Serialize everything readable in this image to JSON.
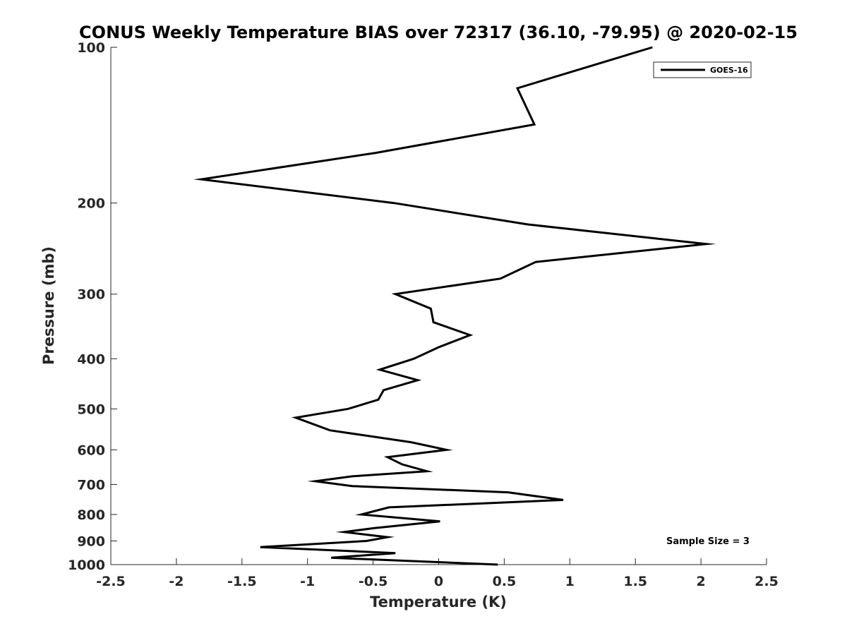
{
  "chart_data": {
    "type": "line",
    "title": "CONUS Weekly Temperature BIAS over 72317 (36.10, -79.95) @ 2020-02-15",
    "xlabel": "Temperature (K)",
    "ylabel": "Pressure (mb)",
    "xlim": [
      -2.5,
      2.5
    ],
    "ylim": [
      1000,
      100
    ],
    "y_scale": "log",
    "y_direction": "reversed",
    "x_ticks": [
      -2.5,
      -2,
      -1.5,
      -1,
      -0.5,
      0,
      0.5,
      1,
      1.5,
      2,
      2.5
    ],
    "x_tick_labels": [
      "-2.5",
      "-2",
      "-1.5",
      "-1",
      "-0.5",
      "0",
      "0.5",
      "1",
      "1.5",
      "2",
      "2.5"
    ],
    "y_ticks": [
      100,
      200,
      300,
      400,
      500,
      600,
      700,
      800,
      900,
      1000
    ],
    "y_tick_labels": [
      "100",
      "200",
      "300",
      "400",
      "500",
      "600",
      "700",
      "800",
      "900",
      "1000"
    ],
    "grid": false,
    "legend_position": "top-right",
    "annotation": "Sample Size = 3",
    "line_color": "#000000",
    "series": [
      {
        "name": "GOES-16",
        "points": [
          {
            "x": 1.63,
            "y": 100
          },
          {
            "x": 0.6,
            "y": 120
          },
          {
            "x": 0.73,
            "y": 141
          },
          {
            "x": -0.48,
            "y": 160
          },
          {
            "x": -1.81,
            "y": 180
          },
          {
            "x": -0.34,
            "y": 200
          },
          {
            "x": 0.68,
            "y": 220
          },
          {
            "x": 2.04,
            "y": 240
          },
          {
            "x": 0.74,
            "y": 260
          },
          {
            "x": 0.47,
            "y": 280
          },
          {
            "x": -0.33,
            "y": 300
          },
          {
            "x": -0.06,
            "y": 320
          },
          {
            "x": -0.04,
            "y": 340
          },
          {
            "x": 0.24,
            "y": 360
          },
          {
            "x": 0.0,
            "y": 380
          },
          {
            "x": -0.19,
            "y": 400
          },
          {
            "x": -0.45,
            "y": 420
          },
          {
            "x": -0.16,
            "y": 440
          },
          {
            "x": -0.42,
            "y": 460
          },
          {
            "x": -0.46,
            "y": 480
          },
          {
            "x": -0.69,
            "y": 500
          },
          {
            "x": -1.09,
            "y": 520
          },
          {
            "x": -0.83,
            "y": 550
          },
          {
            "x": -0.21,
            "y": 580
          },
          {
            "x": 0.06,
            "y": 600
          },
          {
            "x": -0.39,
            "y": 620
          },
          {
            "x": -0.28,
            "y": 640
          },
          {
            "x": -0.09,
            "y": 660
          },
          {
            "x": -0.66,
            "y": 675
          },
          {
            "x": -0.94,
            "y": 690
          },
          {
            "x": -0.66,
            "y": 705
          },
          {
            "x": 0.53,
            "y": 725
          },
          {
            "x": 0.95,
            "y": 750
          },
          {
            "x": -0.38,
            "y": 775
          },
          {
            "x": -0.59,
            "y": 800
          },
          {
            "x": 0.01,
            "y": 825
          },
          {
            "x": -0.49,
            "y": 850
          },
          {
            "x": -0.72,
            "y": 865
          },
          {
            "x": -0.39,
            "y": 885
          },
          {
            "x": -0.55,
            "y": 900
          },
          {
            "x": -1.36,
            "y": 925
          },
          {
            "x": -0.33,
            "y": 950
          },
          {
            "x": -0.82,
            "y": 970
          },
          {
            "x": 0.45,
            "y": 1000
          }
        ]
      }
    ]
  }
}
